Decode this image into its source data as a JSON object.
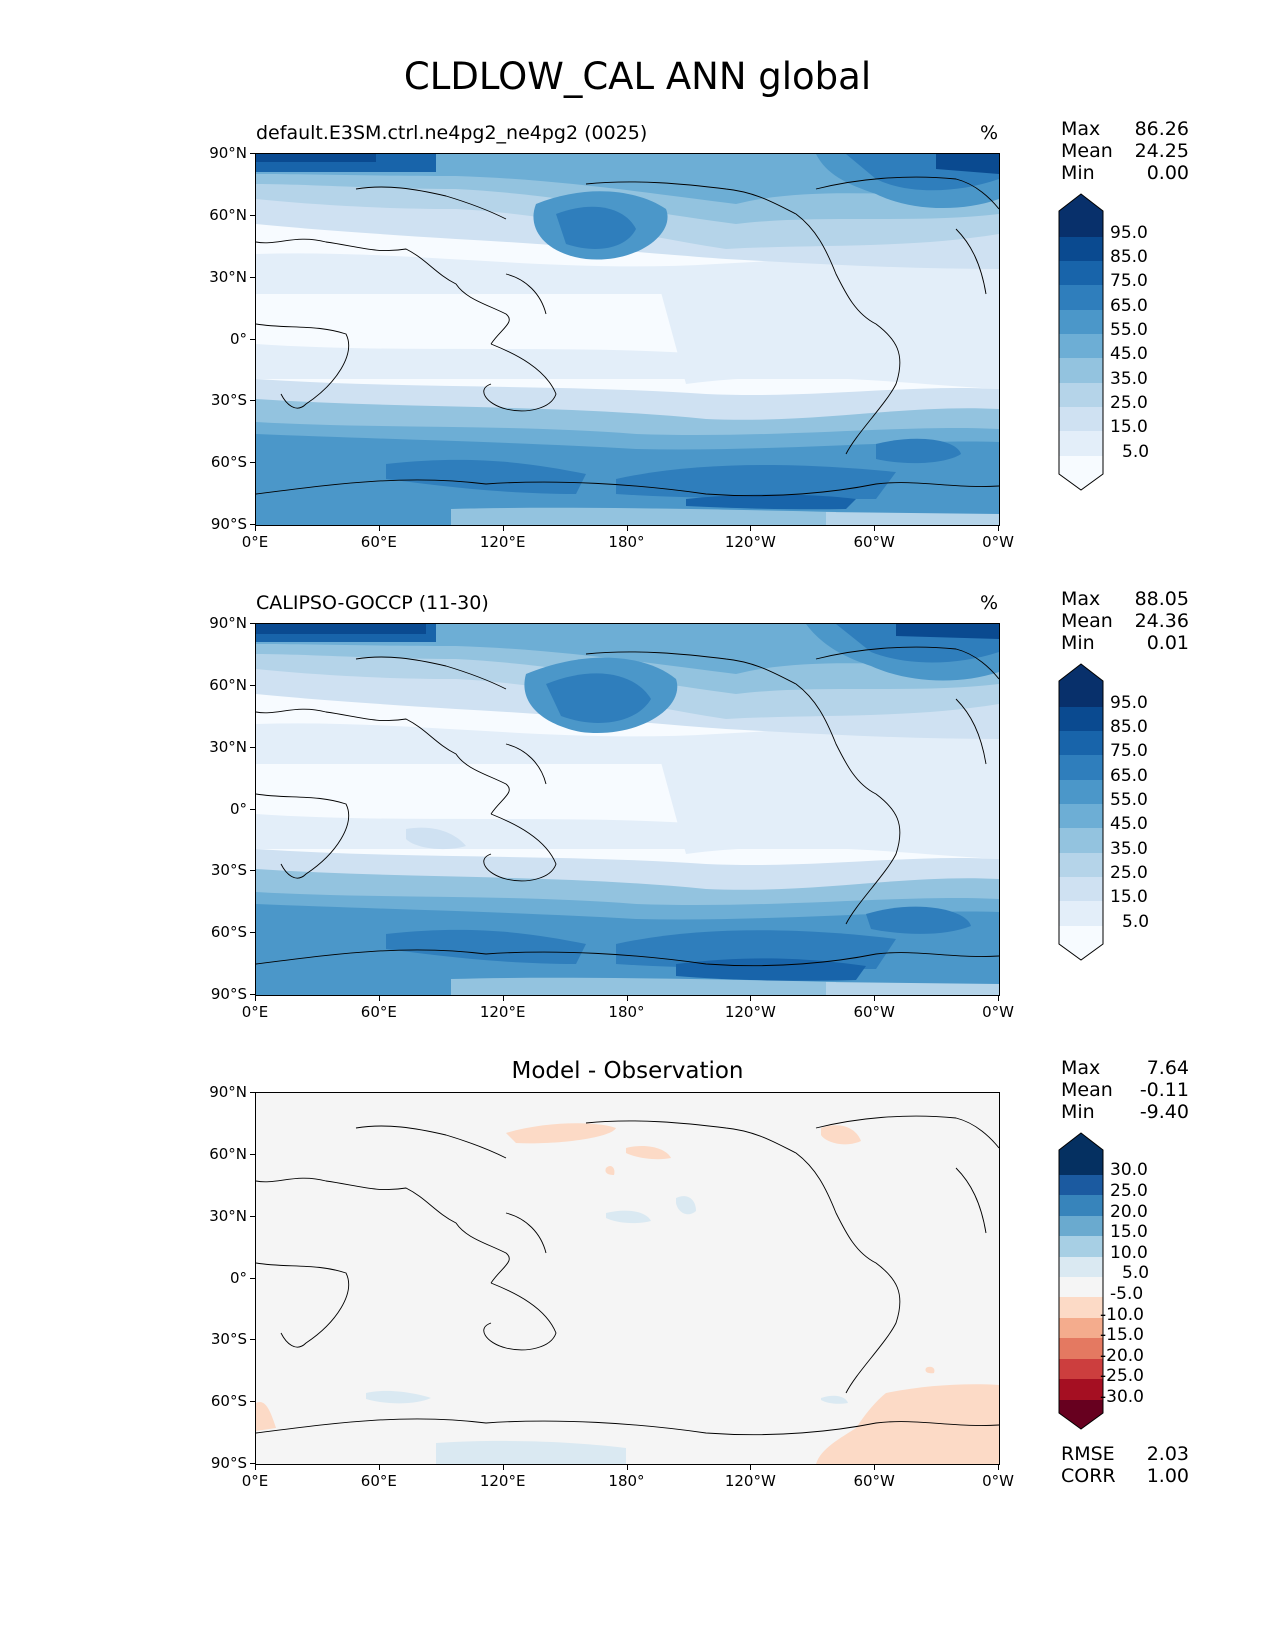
{
  "figure": {
    "title": "CLDLOW_CAL ANN global"
  },
  "colors": {
    "blues": [
      "#f7fbff",
      "#e3eef9",
      "#cfe1f2",
      "#b5d4e9",
      "#93c3df",
      "#6daed5",
      "#4b97c9",
      "#2f7ebc",
      "#1864aa",
      "#0a4a90",
      "#08306b"
    ],
    "diff": [
      "#67001f",
      "#a50f22",
      "#cc3e3e",
      "#e47961",
      "#f4ac8d",
      "#fcdac6",
      "#f5f5f5",
      "#dae9f2",
      "#a7cfe4",
      "#6aaacf",
      "#3784bb",
      "#1b5aa0",
      "#053061"
    ],
    "land": "#000000"
  },
  "panels": [
    {
      "id": "test",
      "title": "default.E3SM.ctrl.ne4pg2_ne4pg2 (0025)",
      "units": "%",
      "stats": {
        "labels": [
          "Max",
          "Mean",
          "Min"
        ],
        "values": [
          "86.26",
          "24.25",
          "0.00"
        ]
      },
      "colorbar": {
        "levels": [
          "95.0",
          "85.0",
          "75.0",
          "65.0",
          "55.0",
          "45.0",
          "35.0",
          "25.0",
          "15.0",
          "5.0"
        ]
      }
    },
    {
      "id": "ref",
      "title": "CALIPSO-GOCCP (11-30)",
      "units": "%",
      "stats": {
        "labels": [
          "Max",
          "Mean",
          "Min"
        ],
        "values": [
          "88.05",
          "24.36",
          "0.01"
        ]
      },
      "colorbar": {
        "levels": [
          "95.0",
          "85.0",
          "75.0",
          "65.0",
          "55.0",
          "45.0",
          "35.0",
          "25.0",
          "15.0",
          "5.0"
        ]
      }
    },
    {
      "id": "diff",
      "title": "Model - Observation",
      "units": "",
      "stats": {
        "labels": [
          "Max",
          "Mean",
          "Min"
        ],
        "values": [
          "7.64",
          "-0.11",
          "-9.40"
        ]
      },
      "colorbar": {
        "levels": [
          "30.0",
          "25.0",
          "20.0",
          "15.0",
          "10.0",
          "5.0",
          "-5.0",
          "-10.0",
          "-15.0",
          "-20.0",
          "-25.0",
          "-30.0"
        ]
      },
      "metrics": {
        "labels": [
          "RMSE",
          "CORR"
        ],
        "values": [
          "2.03",
          "1.00"
        ]
      }
    }
  ],
  "axes": {
    "lat_ticks": [
      "90°N",
      "60°N",
      "30°N",
      "0°",
      "30°S",
      "60°S",
      "90°S"
    ],
    "lon_ticks": [
      "0°E",
      "60°E",
      "120°E",
      "180°",
      "120°W",
      "60°W",
      "0°W"
    ]
  }
}
